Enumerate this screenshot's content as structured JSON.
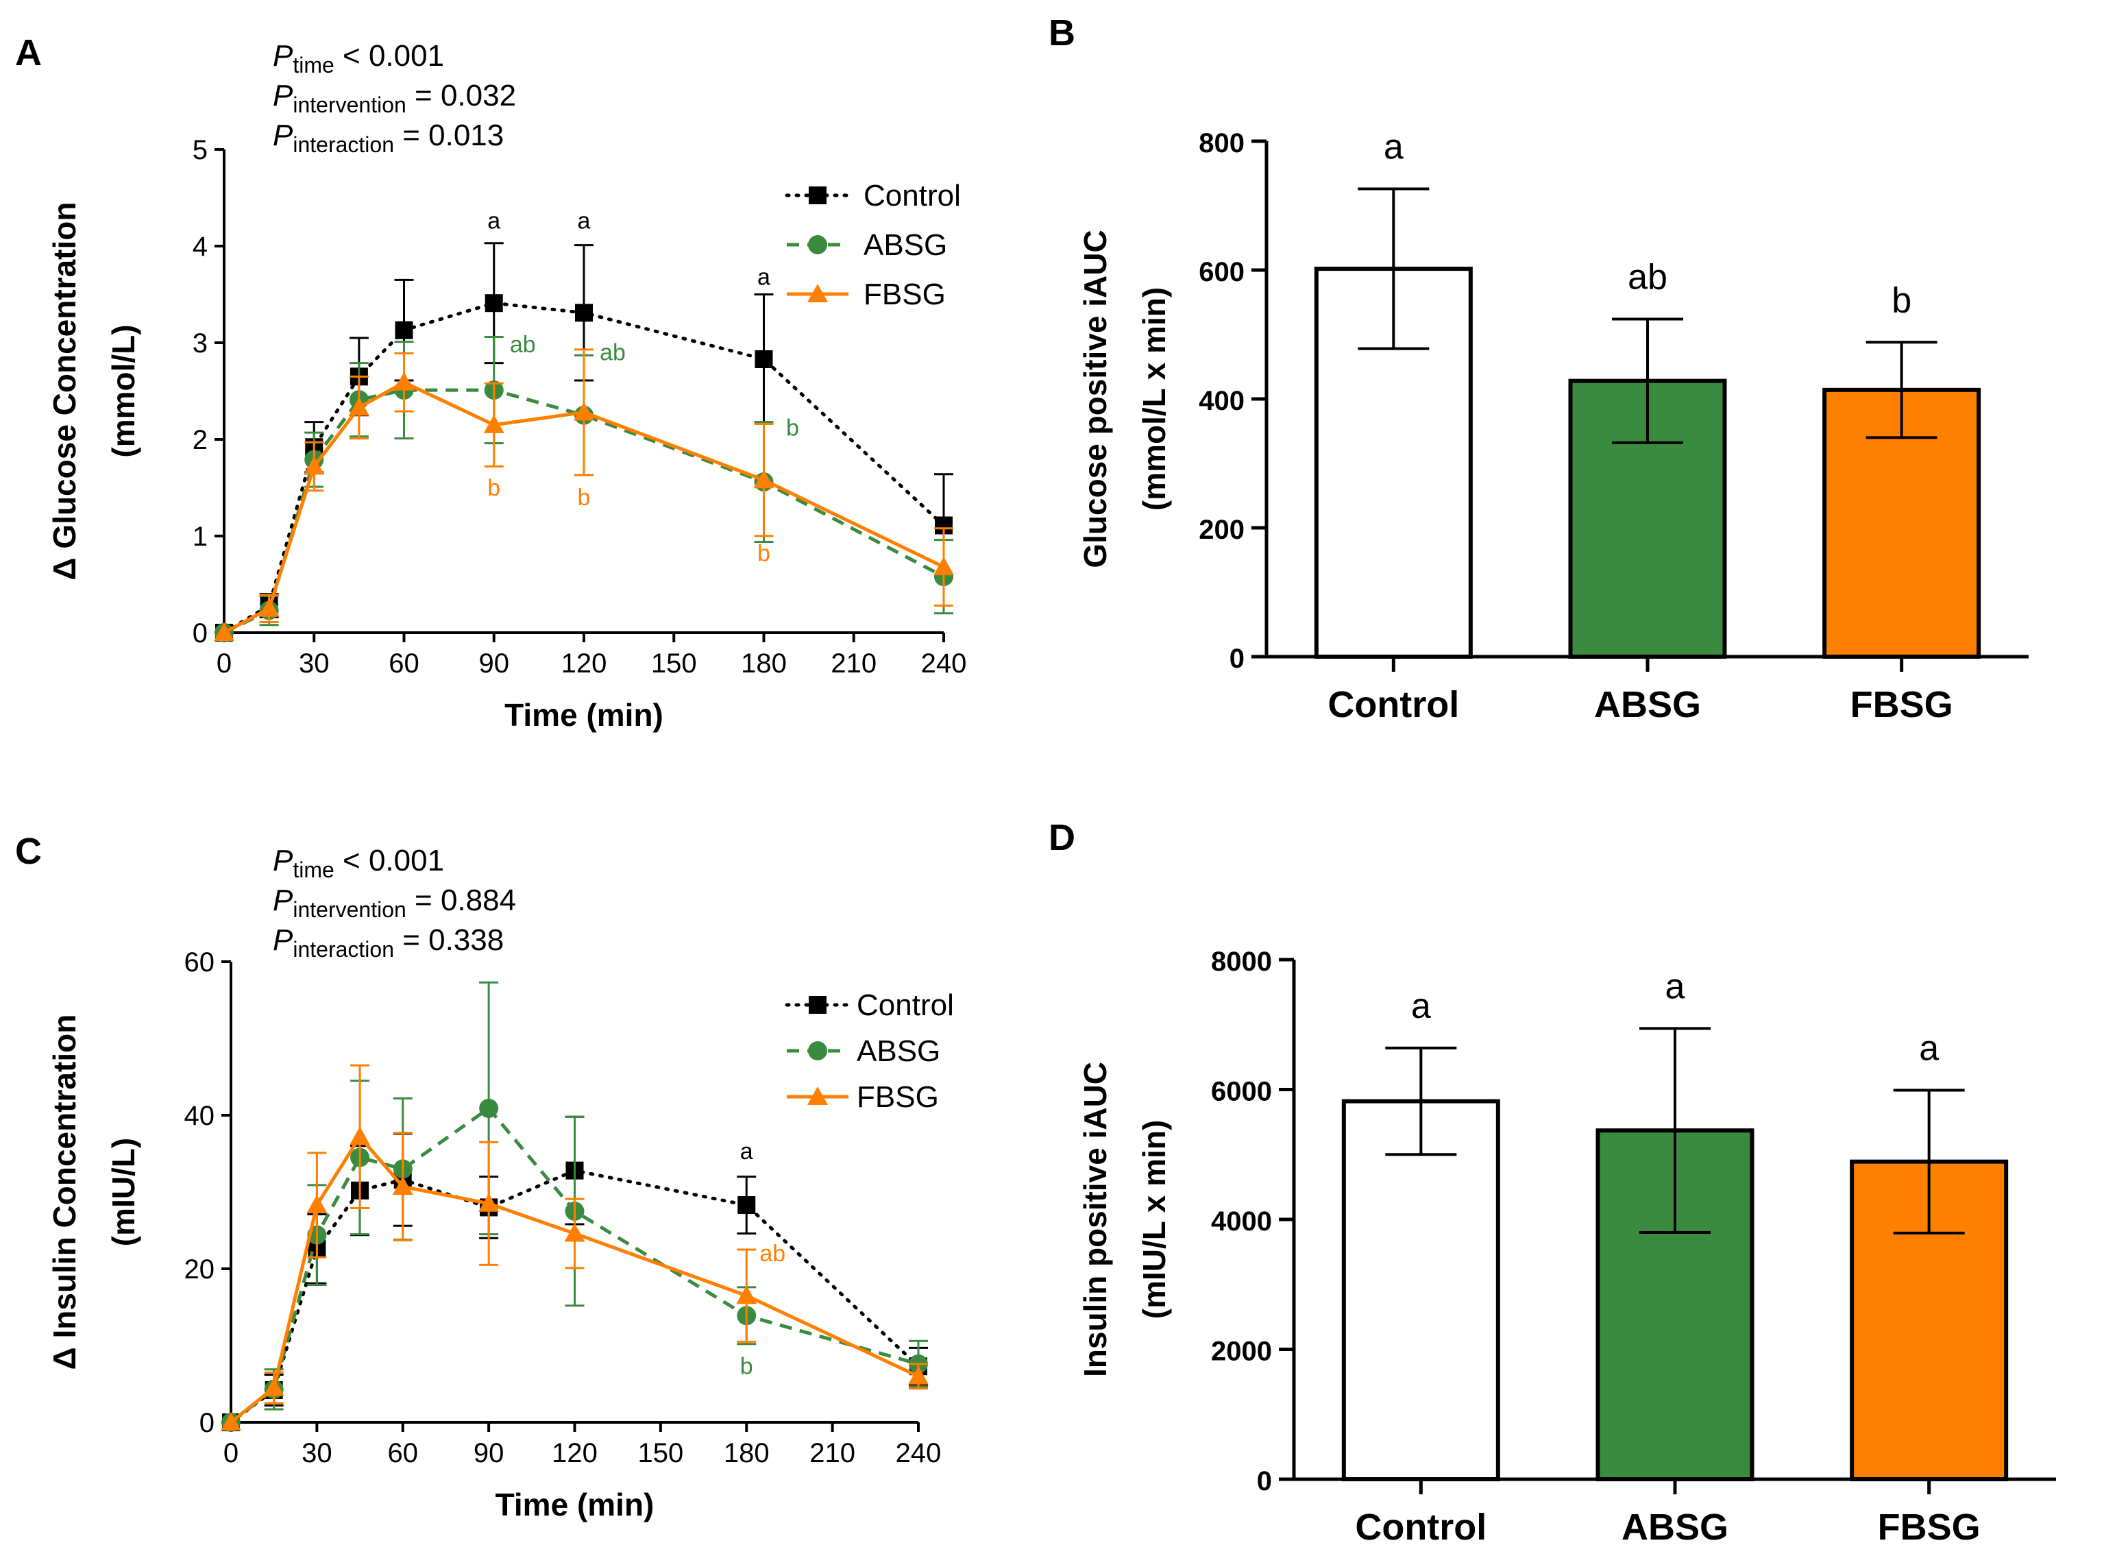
{
  "colors": {
    "control": "#000000",
    "absg": "#3a8a3f",
    "fbsg": "#ff7f00",
    "control_fill": "#ffffff"
  },
  "chart_data": [
    {
      "id": "A",
      "panel_label": "A",
      "type": "line",
      "title": "",
      "xlabel": "Time (min)",
      "ylabel": [
        "Δ Glucose Concentration",
        "(mmol/L)"
      ],
      "xlim": [
        0,
        240
      ],
      "ylim": [
        0,
        5
      ],
      "xticks": [
        0,
        30,
        60,
        90,
        120,
        150,
        180,
        210,
        240
      ],
      "yticks": [
        0,
        1,
        2,
        3,
        4,
        5
      ],
      "stats": [
        {
          "sym": "P",
          "sub": "time",
          "text": " < 0.001"
        },
        {
          "sym": "P",
          "sub": "intervention",
          "text": " = 0.032"
        },
        {
          "sym": "P",
          "sub": "interaction",
          "text": " = 0.013"
        }
      ],
      "x": [
        0,
        15,
        30,
        45,
        60,
        90,
        120,
        180,
        240
      ],
      "series": [
        {
          "name": "Control",
          "key": "control",
          "marker": "square",
          "line": "dotted",
          "values": [
            0,
            0.28,
            1.92,
            2.65,
            3.13,
            3.41,
            3.31,
            2.83,
            1.11
          ],
          "err": [
            0,
            0.12,
            0.26,
            0.4,
            0.52,
            0.62,
            0.7,
            0.67,
            0.53
          ]
        },
        {
          "name": "ABSG",
          "key": "absg",
          "marker": "circle",
          "line": "dashed",
          "values": [
            0,
            0.23,
            1.79,
            2.41,
            2.51,
            2.51,
            2.25,
            1.56,
            0.58
          ],
          "err": [
            0,
            0.15,
            0.28,
            0.38,
            0.5,
            0.55,
            0.62,
            0.62,
            0.38
          ]
        },
        {
          "name": "FBSG",
          "key": "fbsg",
          "marker": "triangle",
          "line": "solid",
          "values": [
            0,
            0.25,
            1.72,
            2.33,
            2.59,
            2.15,
            2.28,
            1.58,
            0.68
          ],
          "err": [
            0,
            0.14,
            0.25,
            0.32,
            0.3,
            0.43,
            0.65,
            0.58,
            0.4
          ]
        }
      ],
      "annotations": [
        {
          "x": 90,
          "y": 4.18,
          "text": "a",
          "key": "control",
          "dx": 0
        },
        {
          "x": 120,
          "y": 4.18,
          "text": "a",
          "key": "control",
          "dx": 0
        },
        {
          "x": 180,
          "y": 3.6,
          "text": "a",
          "key": "control",
          "dx": 0
        },
        {
          "x": 90,
          "y": 2.9,
          "text": "ab",
          "key": "absg",
          "dx": 42
        },
        {
          "x": 120,
          "y": 2.82,
          "text": "ab",
          "key": "absg",
          "dx": 42
        },
        {
          "x": 180,
          "y": 2.04,
          "text": "b",
          "key": "absg",
          "dx": 42
        },
        {
          "x": 90,
          "y": 1.42,
          "text": "b",
          "key": "fbsg",
          "dx": 0
        },
        {
          "x": 120,
          "y": 1.32,
          "text": "b",
          "key": "fbsg",
          "dx": 0
        },
        {
          "x": 180,
          "y": 0.74,
          "text": "b",
          "key": "fbsg",
          "dx": 0
        }
      ]
    },
    {
      "id": "B",
      "panel_label": "B",
      "type": "bar",
      "title": "",
      "xlabel": "",
      "ylabel": [
        "Glucose positive iAUC",
        "(mmol/L x min)"
      ],
      "ylim": [
        0,
        800
      ],
      "yticks": [
        0,
        200,
        400,
        600,
        800
      ],
      "categories": [
        "Control",
        "ABSG",
        "FBSG"
      ],
      "keys": [
        "control",
        "absg",
        "fbsg"
      ],
      "values": [
        602,
        428,
        414
      ],
      "err": [
        124,
        96,
        74
      ],
      "letters": [
        "a",
        "ab",
        "b"
      ]
    },
    {
      "id": "C",
      "panel_label": "C",
      "type": "line",
      "title": "",
      "xlabel": "Time (min)",
      "ylabel": [
        "Δ Insulin Concentration",
        "(mIU/L)"
      ],
      "xlim": [
        0,
        240
      ],
      "ylim": [
        0,
        60
      ],
      "xticks": [
        0,
        30,
        60,
        90,
        120,
        150,
        180,
        210,
        240
      ],
      "yticks": [
        0,
        20,
        40,
        60
      ],
      "stats": [
        {
          "sym": "P",
          "sub": "time",
          "text": " < 0.001"
        },
        {
          "sym": "P",
          "sub": "intervention",
          "text": " = 0.884"
        },
        {
          "sym": "P",
          "sub": "interaction",
          "text": " = 0.338"
        }
      ],
      "x": [
        0,
        15,
        30,
        45,
        60,
        90,
        120,
        180,
        240
      ],
      "series": [
        {
          "name": "Control",
          "key": "control",
          "marker": "square",
          "line": "dotted",
          "values": [
            0,
            4.2,
            22.6,
            30.2,
            31.6,
            28.0,
            32.8,
            28.3,
            7.3
          ],
          "err": [
            0,
            2.0,
            4.5,
            5.8,
            6.0,
            4.0,
            7.0,
            3.7,
            2.4
          ]
        },
        {
          "name": "ABSG",
          "key": "absg",
          "marker": "circle",
          "line": "dashed",
          "values": [
            0,
            4.3,
            24.4,
            34.5,
            33.0,
            40.9,
            27.5,
            13.9,
            7.6
          ],
          "err": [
            0,
            2.6,
            6.5,
            10.0,
            9.2,
            16.4,
            12.3,
            3.7,
            3.0
          ]
        },
        {
          "name": "FBSG",
          "key": "fbsg",
          "marker": "triangle",
          "line": "solid",
          "values": [
            0,
            4.5,
            28.3,
            37.2,
            30.7,
            28.5,
            24.6,
            16.5,
            6.0
          ],
          "err": [
            0,
            2.0,
            6.8,
            9.3,
            7.0,
            8.0,
            4.5,
            6.0,
            1.6
          ]
        }
      ],
      "annotations": [
        {
          "x": 180,
          "y": 34.3,
          "text": "a",
          "key": "control",
          "dx": 0
        },
        {
          "x": 180,
          "y": 21.0,
          "text": "ab",
          "key": "fbsg",
          "dx": 38
        },
        {
          "x": 180,
          "y": 6.3,
          "text": "b",
          "key": "absg",
          "dx": 0
        }
      ]
    },
    {
      "id": "D",
      "panel_label": "D",
      "type": "bar",
      "title": "",
      "xlabel": "",
      "ylabel": [
        "Insulin positive iAUC",
        "(mIU/L x min)"
      ],
      "ylim": [
        0,
        8000
      ],
      "yticks": [
        0,
        2000,
        4000,
        6000,
        8000
      ],
      "categories": [
        "Control",
        "ABSG",
        "FBSG"
      ],
      "keys": [
        "control",
        "absg",
        "fbsg"
      ],
      "values": [
        5820,
        5370,
        4890
      ],
      "err": [
        820,
        1570,
        1100
      ],
      "letters": [
        "a",
        "a",
        "a"
      ]
    }
  ]
}
